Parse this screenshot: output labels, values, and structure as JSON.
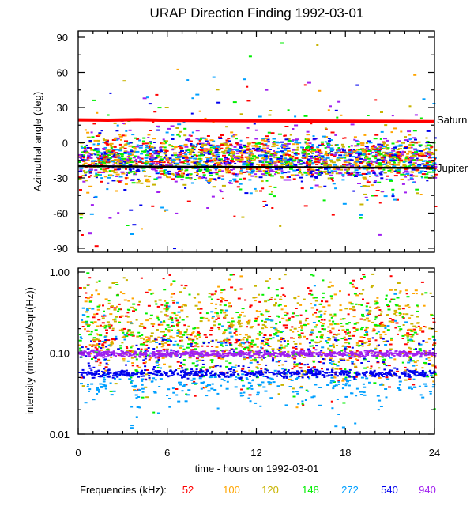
{
  "chart_data": [
    {
      "type": "scatter",
      "title": "URAP Direction Finding  1992-03-01",
      "xlabel": "",
      "ylabel": "Azimuthal angle (deg)",
      "xlim": [
        0,
        24
      ],
      "ylim": [
        -93.4,
        95.4
      ],
      "x_ticks": [
        "0",
        "6",
        "12",
        "18",
        "24"
      ],
      "x_tick_values": [
        0,
        6,
        12,
        18,
        24
      ],
      "y_ticks": [
        "90",
        "60",
        "30",
        "0",
        "-30",
        "-60",
        "-90"
      ],
      "y_tick_values": [
        90,
        60,
        30,
        0,
        -30,
        -60,
        -90
      ],
      "grid": false,
      "reference_lines": [
        {
          "name": "Saturn",
          "label": "Saturn",
          "color": "#ff0000",
          "x": [
            0,
            2,
            4,
            5.6,
            10,
            14,
            18.5,
            24
          ],
          "y": [
            19.5,
            19.2,
            19.6,
            19.2,
            18.8,
            18.6,
            18.4,
            18.0
          ]
        },
        {
          "name": "Jupiter",
          "label": "Jupiter",
          "color": "#000000",
          "x": [
            0,
            4,
            8,
            12,
            16,
            20,
            24
          ],
          "y": [
            -20.0,
            -20.3,
            -20.6,
            -20.8,
            -21.0,
            -21.3,
            -21.6
          ]
        }
      ],
      "series_center_deg": -13,
      "series_spread_deg": 9
    },
    {
      "type": "scatter",
      "title": "",
      "xlabel": "time - hours on 1992-03-01",
      "ylabel": "intensity (microvolt/sqrt(Hz))",
      "xlim": [
        0,
        24
      ],
      "ylim": [
        0.01,
        1.0
      ],
      "yscale": "log",
      "x_ticks": [
        "0",
        "6",
        "12",
        "18",
        "24"
      ],
      "x_tick_values": [
        0,
        6,
        12,
        18,
        24
      ],
      "y_ticks": [
        "1.00",
        "0.10",
        "0.01"
      ],
      "y_tick_values": [
        1.0,
        0.1,
        0.01
      ],
      "grid": false,
      "series": [
        {
          "name": "52",
          "color": "#ff0000",
          "baseline": 0.14,
          "peak": 0.5
        },
        {
          "name": "100",
          "color": "#ffa500",
          "baseline": 0.14,
          "peak": 0.5
        },
        {
          "name": "120",
          "color": "#c8b400",
          "baseline": 0.15,
          "peak": 0.6
        },
        {
          "name": "148",
          "color": "#00ee00",
          "baseline": 0.12,
          "peak": 0.7
        },
        {
          "name": "272",
          "color": "#00a0ff",
          "baseline": 0.045,
          "peak": 0.9
        },
        {
          "name": "540",
          "color": "#0000ee",
          "baseline": 0.057,
          "peak": 0.1
        },
        {
          "name": "940",
          "color": "#a020f0",
          "baseline": 0.1,
          "peak": 0.12
        }
      ]
    }
  ],
  "legend": {
    "label": "Frequencies (kHz):",
    "placement": "bottom",
    "items": [
      {
        "text": "52",
        "color": "#ff0000"
      },
      {
        "text": "100",
        "color": "#ffa500"
      },
      {
        "text": "120",
        "color": "#c8b400"
      },
      {
        "text": "148",
        "color": "#00ee00"
      },
      {
        "text": "272",
        "color": "#00a0ff"
      },
      {
        "text": "540",
        "color": "#0000ee"
      },
      {
        "text": "940",
        "color": "#a020f0"
      }
    ]
  }
}
